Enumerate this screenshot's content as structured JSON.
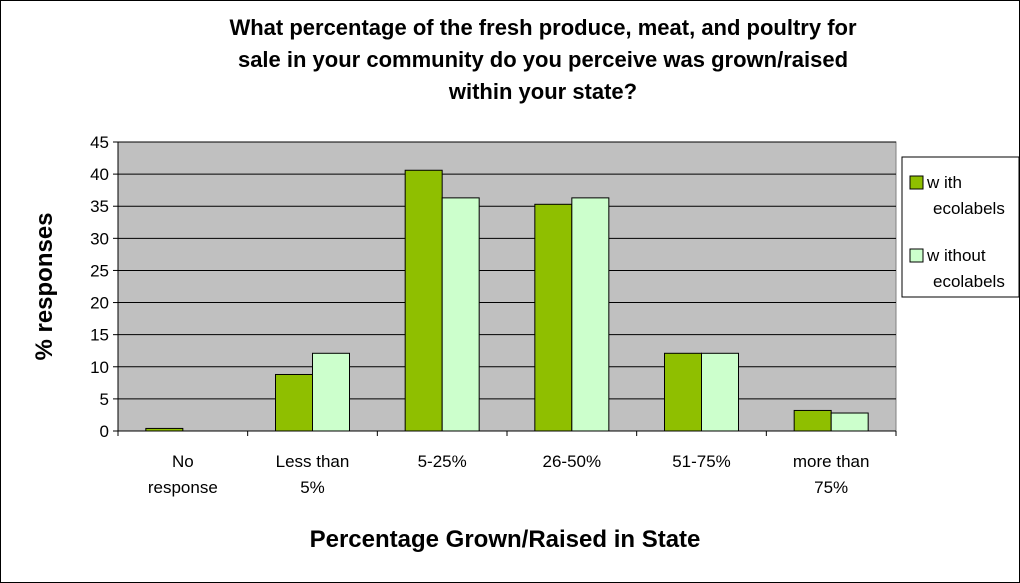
{
  "chart_data": {
    "type": "bar",
    "title_lines": [
      "What percentage of the fresh produce, meat, and poultry for",
      "sale in your community do you perceive was grown/raised",
      "within your state?"
    ],
    "xlabel": "Percentage Grown/Raised in State",
    "ylabel": "% responses",
    "ylim": [
      0,
      45
    ],
    "yticks": [
      0,
      5,
      10,
      15,
      20,
      25,
      30,
      35,
      40,
      45
    ],
    "grid": true,
    "legend_position": "right",
    "categories": [
      [
        "No",
        "response"
      ],
      [
        "Less than",
        "5%"
      ],
      [
        "5-25%"
      ],
      [
        "26-50%"
      ],
      [
        "51-75%"
      ],
      [
        "more than",
        "75%"
      ]
    ],
    "series": [
      {
        "name_lines": [
          "w ith",
          "ecolabels"
        ],
        "color": "#8fbf00",
        "values": [
          0.4,
          8.8,
          40.6,
          35.3,
          12.1,
          3.2
        ]
      },
      {
        "name_lines": [
          "w ithout",
          "ecolabels"
        ],
        "color": "#ccffcc",
        "values": [
          0,
          12.1,
          36.3,
          36.3,
          12.1,
          2.8
        ]
      }
    ],
    "plot_background": "#c0c0c0"
  }
}
